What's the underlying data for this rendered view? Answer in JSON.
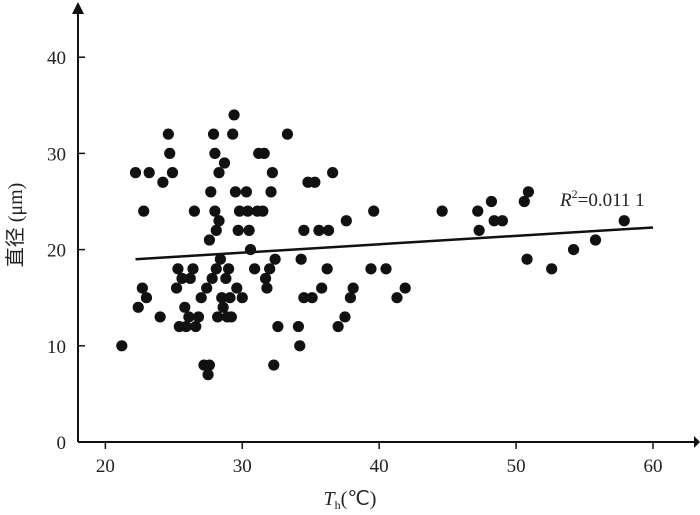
{
  "chart_data": {
    "type": "scatter",
    "title": "",
    "xlabel_main": "T",
    "xlabel_sub": "h",
    "xlabel_unit": "(℃)",
    "ylabel": "直径 (μm)",
    "xlim": [
      18,
      62
    ],
    "ylim": [
      0,
      45
    ],
    "xticks": [
      "20",
      "30",
      "40",
      "50",
      "60"
    ],
    "yticks": [
      "0",
      "10",
      "20",
      "30",
      "40"
    ],
    "grid": false,
    "annotation": {
      "prefix": "R",
      "sup": "2",
      "value": "=0.011 1"
    },
    "trendline": {
      "x": [
        22.2,
        60
      ],
      "y": [
        19.0,
        22.3
      ]
    },
    "points": [
      [
        21.2,
        10
      ],
      [
        22.2,
        28
      ],
      [
        22.4,
        14
      ],
      [
        22.7,
        16
      ],
      [
        22.8,
        24
      ],
      [
        23.0,
        15
      ],
      [
        23.2,
        28
      ],
      [
        24.0,
        13
      ],
      [
        24.2,
        27
      ],
      [
        24.6,
        32
      ],
      [
        24.7,
        30
      ],
      [
        24.9,
        28
      ],
      [
        25.2,
        16
      ],
      [
        25.3,
        18
      ],
      [
        25.4,
        12
      ],
      [
        25.6,
        17
      ],
      [
        25.8,
        14
      ],
      [
        25.9,
        12
      ],
      [
        26.1,
        13
      ],
      [
        26.2,
        17
      ],
      [
        26.4,
        18
      ],
      [
        26.5,
        24
      ],
      [
        26.6,
        12
      ],
      [
        26.8,
        13
      ],
      [
        27.0,
        15
      ],
      [
        27.2,
        8
      ],
      [
        27.4,
        16
      ],
      [
        27.5,
        7
      ],
      [
        27.6,
        21
      ],
      [
        27.6,
        8
      ],
      [
        27.7,
        26
      ],
      [
        27.8,
        17
      ],
      [
        27.9,
        32
      ],
      [
        28.0,
        30
      ],
      [
        28.0,
        24
      ],
      [
        28.1,
        22
      ],
      [
        28.1,
        18
      ],
      [
        28.2,
        13
      ],
      [
        28.3,
        28
      ],
      [
        28.3,
        23
      ],
      [
        28.4,
        19
      ],
      [
        28.5,
        15
      ],
      [
        28.6,
        14
      ],
      [
        28.7,
        29
      ],
      [
        28.8,
        17
      ],
      [
        28.9,
        13
      ],
      [
        29.0,
        18
      ],
      [
        29.1,
        15
      ],
      [
        29.2,
        13
      ],
      [
        29.3,
        32
      ],
      [
        29.4,
        34
      ],
      [
        29.5,
        26
      ],
      [
        29.6,
        16
      ],
      [
        29.7,
        22
      ],
      [
        29.8,
        24
      ],
      [
        30.0,
        15
      ],
      [
        30.3,
        26
      ],
      [
        30.4,
        24
      ],
      [
        30.5,
        22
      ],
      [
        30.6,
        20
      ],
      [
        30.9,
        18
      ],
      [
        31.1,
        24
      ],
      [
        31.2,
        30
      ],
      [
        31.5,
        24
      ],
      [
        31.6,
        30
      ],
      [
        31.7,
        17
      ],
      [
        31.8,
        16
      ],
      [
        32.0,
        18
      ],
      [
        32.1,
        26
      ],
      [
        32.2,
        28
      ],
      [
        32.3,
        8
      ],
      [
        32.4,
        19
      ],
      [
        32.6,
        12
      ],
      [
        33.3,
        32
      ],
      [
        34.1,
        12
      ],
      [
        34.2,
        10
      ],
      [
        34.3,
        19
      ],
      [
        34.5,
        22
      ],
      [
        34.5,
        15
      ],
      [
        34.8,
        27
      ],
      [
        35.1,
        15
      ],
      [
        35.3,
        27
      ],
      [
        35.6,
        22
      ],
      [
        35.8,
        16
      ],
      [
        36.2,
        18
      ],
      [
        36.3,
        22
      ],
      [
        36.6,
        28
      ],
      [
        37.0,
        12
      ],
      [
        37.5,
        13
      ],
      [
        37.6,
        23
      ],
      [
        37.9,
        15
      ],
      [
        38.1,
        16
      ],
      [
        39.4,
        18
      ],
      [
        39.6,
        24
      ],
      [
        40.5,
        18
      ],
      [
        41.3,
        15
      ],
      [
        41.9,
        16
      ],
      [
        44.6,
        24
      ],
      [
        47.2,
        24
      ],
      [
        47.3,
        22
      ],
      [
        48.2,
        25
      ],
      [
        48.4,
        23
      ],
      [
        49.0,
        23
      ],
      [
        50.6,
        25
      ],
      [
        50.8,
        19
      ],
      [
        50.9,
        26
      ],
      [
        52.6,
        18
      ],
      [
        54.2,
        20
      ],
      [
        55.8,
        21
      ],
      [
        57.9,
        23
      ]
    ]
  }
}
